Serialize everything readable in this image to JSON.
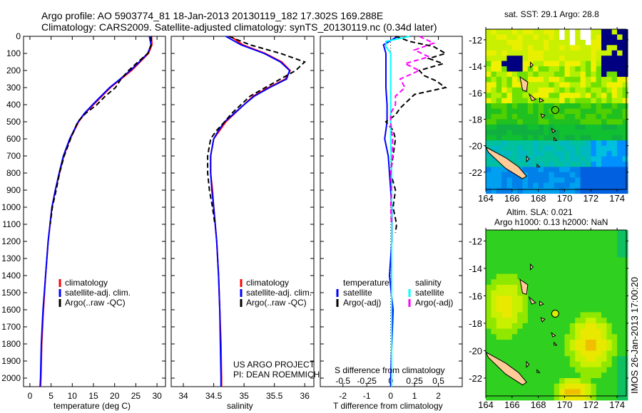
{
  "header": {
    "line1": "Argo profile: AO 5903774_81 18-Jan-2013 20130119_182 17.302S 169.288E",
    "line2": "Climatology: CARS2009. Satellite-adjusted climatology: synTS_20130119.nc (0.34d later)"
  },
  "credit": {
    "project": "US ARGO PROJECT",
    "pi": "PI: DEAN ROEMMICH",
    "stamp": "IMOS 26-Jan-2013 17:00:20"
  },
  "colors": {
    "climatology": "#ff0000",
    "satellite": "#0000ff",
    "argo": "#000000",
    "sal_satellite": "#00ffff",
    "sal_argo": "#ff00ff",
    "land": "#ffcc99"
  },
  "chart_data": [
    {
      "type": "line",
      "title": "",
      "xlabel": "temperature (deg C)",
      "ylabel": "",
      "xlim": [
        -1.5,
        32
      ],
      "ylim": [
        2050,
        0
      ],
      "xticks": [
        "0",
        "5",
        "10",
        "15",
        "20",
        "25",
        "30"
      ],
      "xtick_values": [
        0,
        5,
        10,
        15,
        20,
        25,
        30
      ],
      "yticks": [
        "0",
        "100",
        "200",
        "300",
        "400",
        "500",
        "600",
        "700",
        "800",
        "900",
        "1000",
        "1100",
        "1200",
        "1300",
        "1400",
        "1500",
        "1600",
        "1700",
        "1800",
        "1900",
        "2000"
      ],
      "legend": [
        "climatology",
        "satellite-adj. clim.",
        "Argo(..raw -QC)"
      ],
      "series": [
        {
          "name": "climatology",
          "color": "#ff0000",
          "dash": false,
          "depth": [
            0,
            50,
            100,
            150,
            200,
            250,
            300,
            350,
            400,
            450,
            500,
            550,
            600,
            700,
            800,
            900,
            1000,
            1200,
            1400,
            1600,
            1800,
            2000,
            2050
          ],
          "values": [
            28.7,
            28.8,
            28.0,
            26.0,
            24.0,
            21.5,
            19.0,
            17.0,
            15.0,
            13.0,
            11.5,
            10.5,
            9.5,
            8.0,
            7.0,
            6.0,
            5.2,
            4.3,
            3.7,
            3.2,
            2.8,
            2.6,
            2.5
          ]
        },
        {
          "name": "satellite-adj. clim.",
          "color": "#0000ff",
          "dash": false,
          "depth": [
            0,
            50,
            100,
            150,
            200,
            250,
            300,
            350,
            400,
            450,
            500,
            550,
            600,
            700,
            800,
            900,
            1000,
            1200,
            1400,
            1600,
            1800,
            2000,
            2050
          ],
          "values": [
            28.2,
            28.6,
            27.8,
            25.8,
            23.7,
            21.3,
            18.8,
            16.8,
            14.8,
            12.9,
            11.4,
            10.4,
            9.4,
            7.9,
            6.9,
            6.0,
            5.2,
            4.3,
            3.7,
            3.1,
            2.7,
            2.5,
            2.4
          ]
        },
        {
          "name": "Argo(..raw -QC)",
          "color": "#000000",
          "dash": true,
          "depth": [
            0,
            50,
            100,
            150,
            200,
            250,
            300,
            350,
            400,
            450,
            500,
            600,
            700,
            800,
            900,
            1000,
            1100
          ],
          "values": [
            28.6,
            28.6,
            27.8,
            25.5,
            23.3,
            21.5,
            20.2,
            17.8,
            15.8,
            13.2,
            11.3,
            9.6,
            8.1,
            7.0,
            6.2,
            5.3,
            4.8
          ]
        }
      ]
    },
    {
      "type": "line",
      "title": "",
      "xlabel": "salinity",
      "ylabel": "",
      "xlim": [
        33.8,
        36.15
      ],
      "ylim": [
        2050,
        0
      ],
      "xticks": [
        "34",
        "34.5",
        "35",
        "35.5",
        "36"
      ],
      "xtick_values": [
        34,
        34.5,
        35,
        35.5,
        36
      ],
      "legend": [
        "climatology",
        "satellite-adj. clim.",
        "Argo(..raw -QC)"
      ],
      "series": [
        {
          "name": "climatology",
          "color": "#ff0000",
          "dash": false,
          "depth": [
            0,
            50,
            100,
            150,
            200,
            250,
            300,
            350,
            400,
            450,
            500,
            550,
            600,
            700,
            800,
            900,
            1000,
            1200,
            1400,
            1600,
            1800,
            2000,
            2050
          ],
          "values": [
            34.78,
            34.98,
            35.35,
            35.62,
            35.76,
            35.68,
            35.4,
            35.15,
            35.0,
            34.85,
            34.7,
            34.6,
            34.5,
            34.45,
            34.45,
            34.48,
            34.5,
            34.55,
            34.58,
            34.6,
            34.62,
            34.63,
            34.63
          ]
        },
        {
          "name": "satellite-adj. clim.",
          "color": "#0000ff",
          "dash": false,
          "depth": [
            0,
            50,
            100,
            150,
            200,
            250,
            300,
            350,
            400,
            450,
            500,
            550,
            600,
            700,
            800,
            900,
            1000,
            1200,
            1400,
            1600,
            1800,
            2000,
            2050
          ],
          "values": [
            34.7,
            34.95,
            35.33,
            35.6,
            35.75,
            35.7,
            35.42,
            35.17,
            35.0,
            34.84,
            34.68,
            34.58,
            34.5,
            34.45,
            34.45,
            34.47,
            34.5,
            34.55,
            34.58,
            34.6,
            34.61,
            34.62,
            34.62
          ]
        },
        {
          "name": "Argo(..raw -QC)",
          "color": "#000000",
          "dash": true,
          "depth": [
            0,
            50,
            100,
            150,
            200,
            250,
            300,
            350,
            400,
            450,
            500,
            550,
            600,
            700,
            800,
            900,
            1000,
            1100
          ],
          "values": [
            34.75,
            35.1,
            35.6,
            36.0,
            35.85,
            35.6,
            35.35,
            35.1,
            34.95,
            34.8,
            34.68,
            34.55,
            34.45,
            34.4,
            34.4,
            34.43,
            34.48,
            34.52
          ]
        }
      ]
    },
    {
      "type": "line",
      "title": "",
      "xlabel": "T difference from climatology",
      "x2label": "S difference from climatology",
      "xlim": [
        -2.95,
        3.0
      ],
      "ylim": [
        2050,
        0
      ],
      "xticks": [
        "-2",
        "-1",
        "0",
        "1",
        "2"
      ],
      "xtick_values": [
        -2,
        -1,
        0,
        1,
        2
      ],
      "x2ticks": [
        "-0.5",
        "-0.25",
        "0",
        "0.25",
        "0.5"
      ],
      "x2tick_values": [
        -0.5,
        -0.25,
        0,
        0.25,
        0.5
      ],
      "legend_headers": [
        "temperature",
        "salinity"
      ],
      "legend": [
        "satellite",
        "Argo(-adj)",
        "satellite",
        "Argo(-adj)"
      ],
      "series": [
        {
          "name": "temperature satellite",
          "color": "#0000ff",
          "dash": false,
          "scale": 1,
          "depth": [
            0,
            50,
            100,
            200,
            300,
            400,
            500,
            600,
            700,
            800,
            900,
            1000,
            1200,
            1400,
            1600,
            1800,
            2000,
            2050
          ],
          "values": [
            0.3,
            -0.3,
            -0.2,
            -0.2,
            -0.2,
            -0.15,
            -0.15,
            -0.25,
            -0.1,
            -0.05,
            0.0,
            0.05,
            0.05,
            -0.05,
            0.1,
            0.05,
            0.0,
            0.0
          ]
        },
        {
          "name": "temperature Argo(-adj)",
          "color": "#000000",
          "dash": true,
          "scale": 1,
          "depth": [
            0,
            30,
            60,
            100,
            130,
            160,
            200,
            230,
            260,
            300,
            340,
            380,
            420,
            460,
            500,
            550,
            600,
            700,
            800,
            900,
            1000,
            1100,
            1150
          ],
          "values": [
            0.2,
            0.8,
            1.8,
            2.3,
            1.6,
            2.2,
            1.2,
            1.4,
            1.9,
            2.3,
            1.0,
            0.7,
            0.4,
            0.2,
            -0.2,
            0.1,
            0.2,
            0.1,
            0.0,
            0.2,
            0.1,
            0.25,
            0.2
          ]
        },
        {
          "name": "salinity satellite",
          "color": "#00ffff",
          "dash": false,
          "scale": 4,
          "depth": [
            0,
            30,
            60,
            100,
            200,
            300,
            400,
            600,
            800,
            1000,
            1400,
            1800,
            2050
          ],
          "values": [
            0.2,
            -0.05,
            -0.05,
            0.0,
            0.0,
            0.0,
            0.0,
            0.0,
            0.01,
            0.01,
            0.01,
            0.01,
            0.01
          ]
        },
        {
          "name": "salinity Argo(-adj)",
          "color": "#ff00ff",
          "dash": true,
          "scale": 4,
          "depth": [
            0,
            40,
            80,
            120,
            160,
            200,
            250,
            300,
            350,
            400,
            450,
            500,
            600,
            700,
            800,
            900,
            1000,
            1100
          ],
          "values": [
            0.3,
            0.45,
            0.25,
            0.4,
            0.15,
            0.3,
            0.1,
            0.15,
            0.05,
            0.05,
            0.0,
            0.0,
            0.02,
            0.02,
            0.0,
            0.01,
            0.0,
            0.01
          ]
        }
      ]
    },
    {
      "type": "heatmap",
      "title": "sat. SST: 29.1  Argo: 28.8",
      "xticks": [
        "164",
        "166",
        "168",
        "170",
        "172",
        "174"
      ],
      "yticks": [
        "-12",
        "-14",
        "-16",
        "-18",
        "-20",
        "-22"
      ],
      "xlim": [
        164,
        174.7
      ],
      "ylim": [
        -23.3,
        -11.2
      ],
      "marker": {
        "lon": 169.288,
        "lat": -17.302
      }
    },
    {
      "type": "heatmap",
      "title": "Altim. SLA: 0.021",
      "subtitle": "Argo h1000: 0.13 h2000: NaN",
      "xticks": [
        "164",
        "166",
        "168",
        "170",
        "172",
        "174"
      ],
      "yticks": [
        "-12",
        "-14",
        "-16",
        "-18",
        "-20",
        "-22"
      ],
      "xlim": [
        164,
        174.7
      ],
      "ylim": [
        -23.3,
        -11.2
      ],
      "marker": {
        "lon": 169.288,
        "lat": -17.302
      }
    }
  ]
}
